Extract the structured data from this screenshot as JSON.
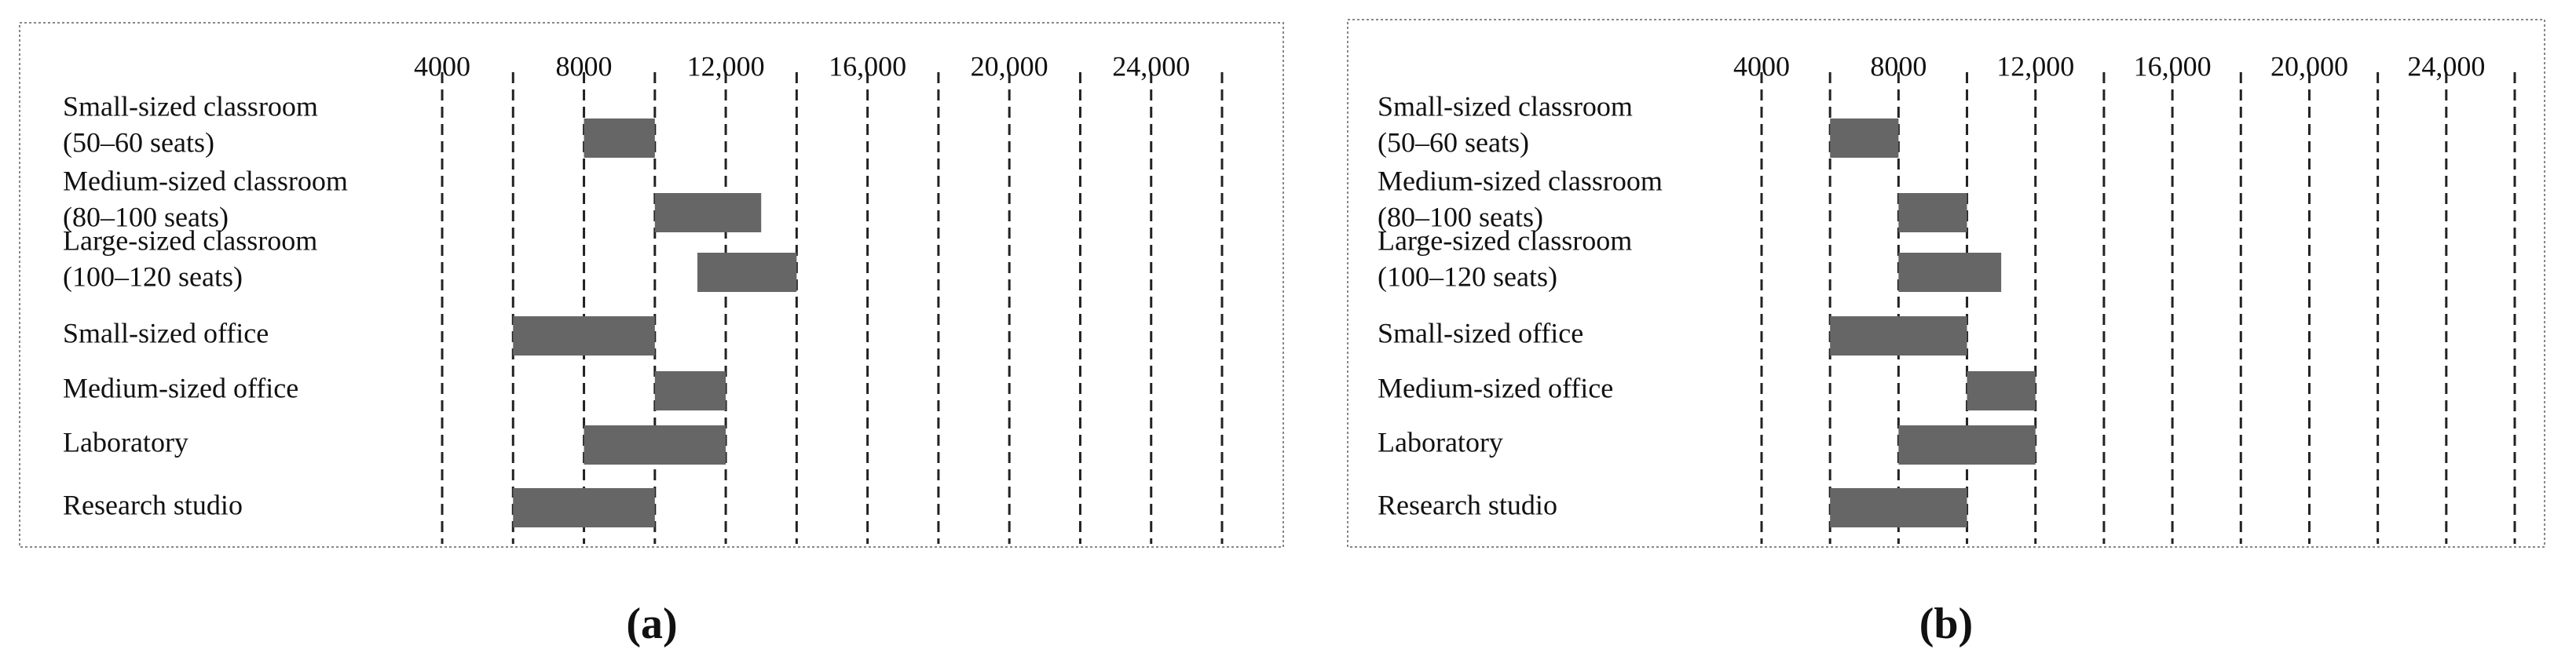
{
  "chart_data": [
    {
      "type": "floating-bar",
      "caption": "(a)",
      "color": "#666666",
      "categories": [
        [
          "Small-sized classroom",
          "(50–60 seats)"
        ],
        [
          "Medium-sized classroom",
          "(80–100 seats)"
        ],
        [
          "Large-sized classroom",
          "(100–120 seats)"
        ],
        [
          "Small-sized office"
        ],
        [
          "Medium-sized office"
        ],
        [
          "Laboratory"
        ],
        [
          "Research studio"
        ]
      ],
      "starts": [
        8000,
        10000,
        11200,
        6000,
        10000,
        8000,
        6000
      ],
      "ends": [
        10000,
        13000,
        14000,
        10000,
        12000,
        12000,
        10000
      ],
      "xlim": [
        4000,
        26000
      ],
      "xticks": [
        4000,
        8000,
        {
          "value": 12000,
          "label": "12,000"
        },
        {
          "value": 16000,
          "label": "16,000"
        },
        {
          "value": 20000,
          "label": "20,000"
        },
        {
          "value": 24000,
          "label": "24,000"
        }
      ],
      "minor_xticks": [
        6000,
        10000,
        14000,
        18000,
        22000,
        26000
      ],
      "grid": true
    },
    {
      "type": "floating-bar",
      "caption": "(b)",
      "color": "#666666",
      "categories": [
        [
          "Small-sized classroom",
          "(50–60 seats)"
        ],
        [
          "Medium-sized classroom",
          "(80–100 seats)"
        ],
        [
          "Large-sized classroom",
          "(100–120 seats)"
        ],
        [
          "Small-sized office"
        ],
        [
          "Medium-sized office"
        ],
        [
          "Laboratory"
        ],
        [
          "Research studio"
        ]
      ],
      "starts": [
        6000,
        8000,
        8000,
        6000,
        10000,
        8000,
        6000
      ],
      "ends": [
        8000,
        10000,
        11000,
        10000,
        12000,
        12000,
        10000
      ],
      "xlim": [
        4000,
        26000
      ],
      "xticks": [
        4000,
        8000,
        {
          "value": 12000,
          "label": "12,000"
        },
        {
          "value": 16000,
          "label": "16,000"
        },
        {
          "value": 20000,
          "label": "20,000"
        },
        {
          "value": 24000,
          "label": "24,000"
        }
      ],
      "minor_xticks": [
        6000,
        10000,
        14000,
        18000,
        22000,
        26000
      ],
      "grid": true
    }
  ]
}
